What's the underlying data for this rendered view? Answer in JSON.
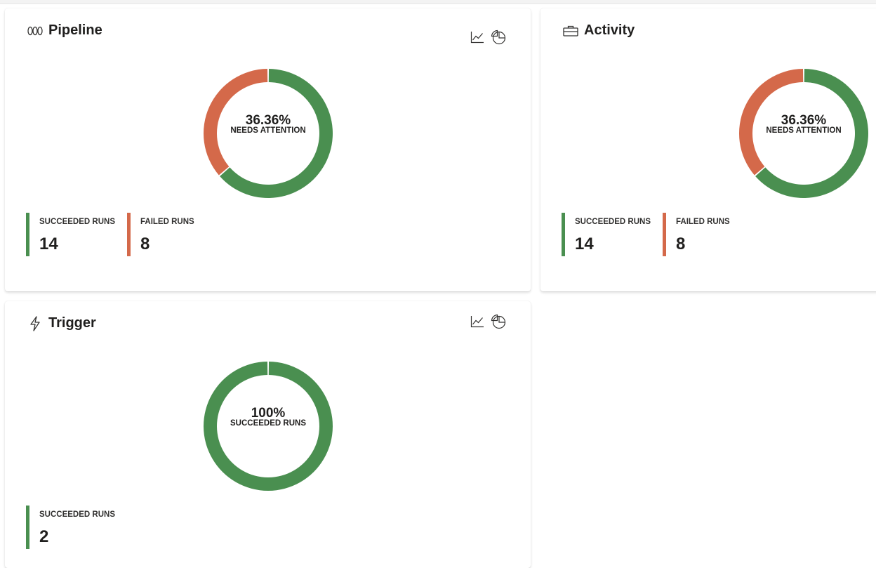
{
  "colors": {
    "success": "#4a8f50",
    "failure": "#d4694a"
  },
  "cards": [
    {
      "title": "Pipeline",
      "icon": "pipeline-icon",
      "actions": [
        "line-chart-icon",
        "pie-chart-icon"
      ],
      "donut": {
        "percent_label": "36.36%",
        "caption": "NEEDS ATTENTION",
        "succeeded": 14,
        "failed": 8
      },
      "stats": [
        {
          "label": "SUCCEEDED RUNS",
          "value": "14",
          "status": "success"
        },
        {
          "label": "FAILED RUNS",
          "value": "8",
          "status": "failure"
        }
      ]
    },
    {
      "title": "Activity",
      "icon": "briefcase-icon",
      "actions": [],
      "donut": {
        "percent_label": "36.36%",
        "caption": "NEEDS ATTENTION",
        "succeeded": 14,
        "failed": 8
      },
      "stats": [
        {
          "label": "SUCCEEDED RUNS",
          "value": "14",
          "status": "success"
        },
        {
          "label": "FAILED RUNS",
          "value": "8",
          "status": "failure"
        }
      ]
    },
    {
      "title": "Trigger",
      "icon": "lightning-icon",
      "actions": [
        "line-chart-icon",
        "pie-chart-icon"
      ],
      "donut": {
        "percent_label": "100%",
        "caption": "SUCCEEDED RUNS",
        "succeeded": 2,
        "failed": 0
      },
      "stats": [
        {
          "label": "SUCCEEDED RUNS",
          "value": "2",
          "status": "success"
        }
      ]
    }
  ]
}
